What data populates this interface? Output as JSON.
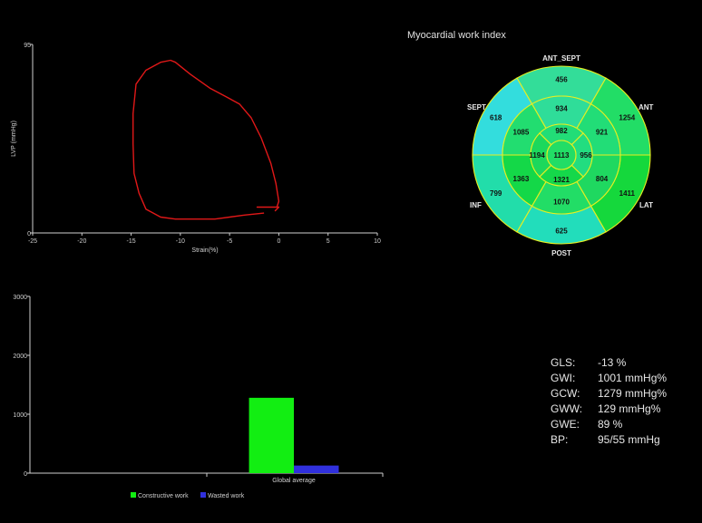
{
  "chart_data": [
    {
      "type": "line",
      "title": "",
      "xlabel": "Strain(%)",
      "ylabel": "LVP (mmHg)",
      "xlim": [
        -25,
        10
      ],
      "ylim": [
        0,
        95
      ],
      "x_ticks": [
        "-25",
        "-20",
        "-15",
        "-10",
        "-5",
        "0",
        "5",
        "10"
      ],
      "y_ticks": [
        "0",
        "95"
      ],
      "line_color": "#e01818",
      "series": [
        {
          "x": [
            -1.5,
            -3.5,
            -6.5,
            -9.0,
            -10.5,
            -12.0,
            -13.5,
            -14.2,
            -14.7,
            -14.8,
            -14.8,
            -14.5,
            -13.5,
            -12.0,
            -11.0,
            -10.5,
            -9.0,
            -7.0,
            -5.5,
            -4.0,
            -2.8,
            -1.8,
            -0.8,
            -0.3,
            0.0,
            -0.2,
            -2.2,
            0.0,
            -0.4
          ],
          "y": [
            10,
            9,
            7,
            7,
            7,
            8,
            12,
            20,
            30,
            45,
            60,
            75,
            82,
            86,
            87,
            86,
            80,
            73,
            69,
            65,
            58,
            48,
            35,
            25,
            16,
            13,
            13,
            13,
            11
          ]
        }
      ]
    },
    {
      "type": "bar",
      "title": "",
      "categories": [
        "Global average"
      ],
      "series": [
        {
          "name": "Constructive work",
          "values": [
            1279
          ],
          "color": "#12ee12"
        },
        {
          "name": "Wasted work",
          "values": [
            129
          ],
          "color": "#3030dd"
        }
      ],
      "ylim": [
        0,
        3000
      ],
      "y_ticks": [
        "0",
        "1000",
        "2000",
        "3000"
      ],
      "legend": "bottom"
    },
    {
      "type": "bullseye",
      "title": "Myocardial work index",
      "direction_labels": {
        "top": "ANT_SEPT",
        "top_left": "SEPT",
        "top_right": "ANT",
        "bottom_left": "INF",
        "bottom_right": "LAT",
        "bottom": "POST"
      },
      "outer": [
        {
          "label": "456",
          "segment": "ANT_SEPT",
          "color": "#33dd99"
        },
        {
          "label": "1254",
          "segment": "ANT",
          "color": "#22dd66"
        },
        {
          "label": "1411",
          "segment": "LAT",
          "color": "#15d83c"
        },
        {
          "label": "625",
          "segment": "POST",
          "color": "#22ddbb"
        },
        {
          "label": "799",
          "segment": "INF",
          "color": "#22ddaa"
        },
        {
          "label": "618",
          "segment": "SEPT",
          "color": "#33dddd"
        }
      ],
      "middle": [
        {
          "label": "934",
          "color": "#2fdd99"
        },
        {
          "label": "921",
          "color": "#22dd77"
        },
        {
          "label": "804",
          "color": "#1fd860"
        },
        {
          "label": "1070",
          "color": "#22dd66"
        },
        {
          "label": "1363",
          "color": "#14d848"
        },
        {
          "label": "1085",
          "color": "#22dd70"
        }
      ],
      "inner": [
        {
          "label": "982",
          "color": "#22dd77"
        },
        {
          "label": "956",
          "color": "#22dd80"
        },
        {
          "label": "1321",
          "color": "#15d84a"
        },
        {
          "label": "1194",
          "color": "#1cd85c"
        }
      ],
      "apex": {
        "label": "1113",
        "color": "#22dd66"
      }
    }
  ],
  "metrics": [
    {
      "label": "GLS:",
      "value": "-13 %"
    },
    {
      "label": "GWI:",
      "value": "1001 mmHg%"
    },
    {
      "label": "GCW:",
      "value": "1279 mmHg%"
    },
    {
      "label": "GWW:",
      "value": "129 mmHg%"
    },
    {
      "label": "GWE:",
      "value": "89 %"
    },
    {
      "label": "BP:",
      "value": "95/55 mmHg"
    }
  ]
}
